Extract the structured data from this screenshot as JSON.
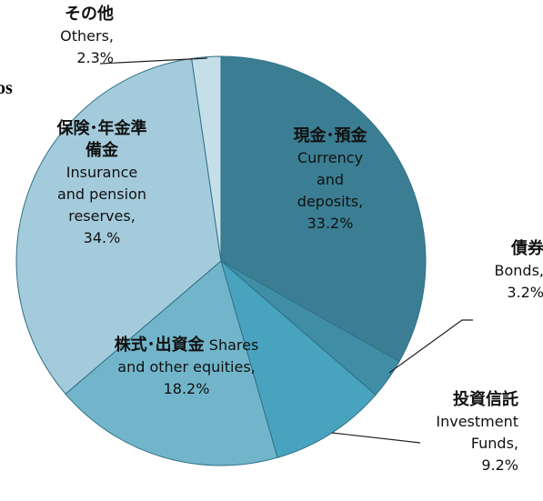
{
  "chart_data": {
    "type": "pie",
    "title": "os",
    "categories_ja": [
      "現金･預金",
      "債券",
      "投資信託",
      "株式･出資金",
      "保険･年金準備金",
      "その他"
    ],
    "categories": [
      "Currency and deposits,",
      "Bonds,",
      "Investment Funds,",
      "Shares and other equities,",
      "Insurance and pension reserves,",
      "Others,"
    ],
    "values": [
      33.2,
      3.2,
      9.2,
      18.2,
      34,
      2.3
    ],
    "value_labels": [
      "33.2%",
      "3.2%",
      "9.2%",
      "18.2%",
      "34.%",
      "2.3%"
    ],
    "colors": [
      "#3b7e93",
      "#3f8ea6",
      "#48a4be",
      "#72b5cb",
      "#a4cbdc",
      "#c5dfe8"
    ]
  }
}
